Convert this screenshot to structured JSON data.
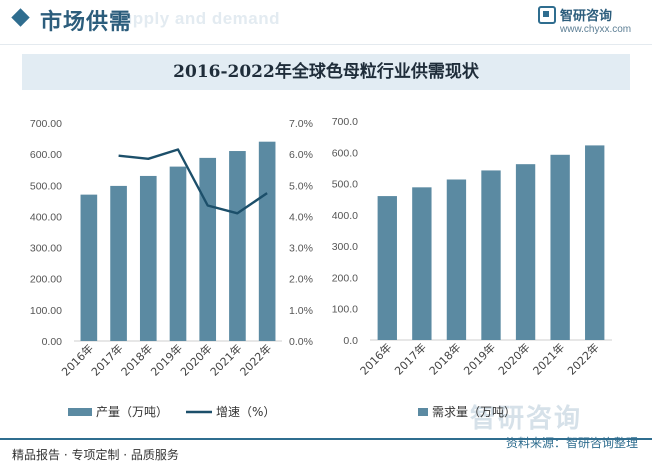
{
  "header": {
    "section_title": "市场供需",
    "watermark": "Supply and demand",
    "brand_name": "智研咨询",
    "brand_url": "www.chyxx.com"
  },
  "footer": {
    "left_text": "精品报告 · 专项定制 · 品质服务",
    "source": "资料来源：智研咨询整理",
    "watermark_brand": "智研咨询"
  },
  "colors": {
    "bar": "#5b8aa2",
    "line": "#1c4f6a",
    "brand": "#2f6d8f"
  },
  "chart_data": [
    {
      "type": "bar+line",
      "title": "2016-2022年全球色母粒行业供需现状",
      "categories": [
        "2016年",
        "2017年",
        "2018年",
        "2019年",
        "2020年",
        "2021年",
        "2022年"
      ],
      "series": [
        {
          "name": "产量（万吨）",
          "type": "bar",
          "axis": "left",
          "values": [
            470,
            498,
            530,
            560,
            588,
            610,
            640
          ]
        },
        {
          "name": "增速（%）",
          "type": "line",
          "axis": "right",
          "values": [
            null,
            5.95,
            5.85,
            6.15,
            4.35,
            4.1,
            4.75
          ]
        }
      ],
      "y_left": {
        "range": [
          0,
          700
        ],
        "ticks": [
          "0.00",
          "100.00",
          "200.00",
          "300.00",
          "400.00",
          "500.00",
          "600.00",
          "700.00"
        ]
      },
      "y_right": {
        "range": [
          0,
          7
        ],
        "ticks": [
          "0.0%",
          "1.0%",
          "2.0%",
          "3.0%",
          "4.0%",
          "5.0%",
          "6.0%",
          "7.0%"
        ]
      },
      "legend": [
        "产量（万吨）",
        "增速（%）"
      ],
      "legend_position": "bottom"
    },
    {
      "type": "bar",
      "categories": [
        "2016年",
        "2017年",
        "2018年",
        "2019年",
        "2020年",
        "2021年",
        "2022年"
      ],
      "series": [
        {
          "name": "需求量（万吨）",
          "type": "bar",
          "values": [
            460,
            488,
            513,
            542,
            562,
            592,
            622
          ]
        }
      ],
      "y": {
        "range": [
          0,
          700
        ],
        "ticks": [
          "0.0",
          "100.0",
          "200.0",
          "300.0",
          "400.0",
          "500.0",
          "600.0",
          "700.0"
        ]
      },
      "legend": [
        "需求量（万吨）"
      ],
      "legend_position": "bottom"
    }
  ]
}
